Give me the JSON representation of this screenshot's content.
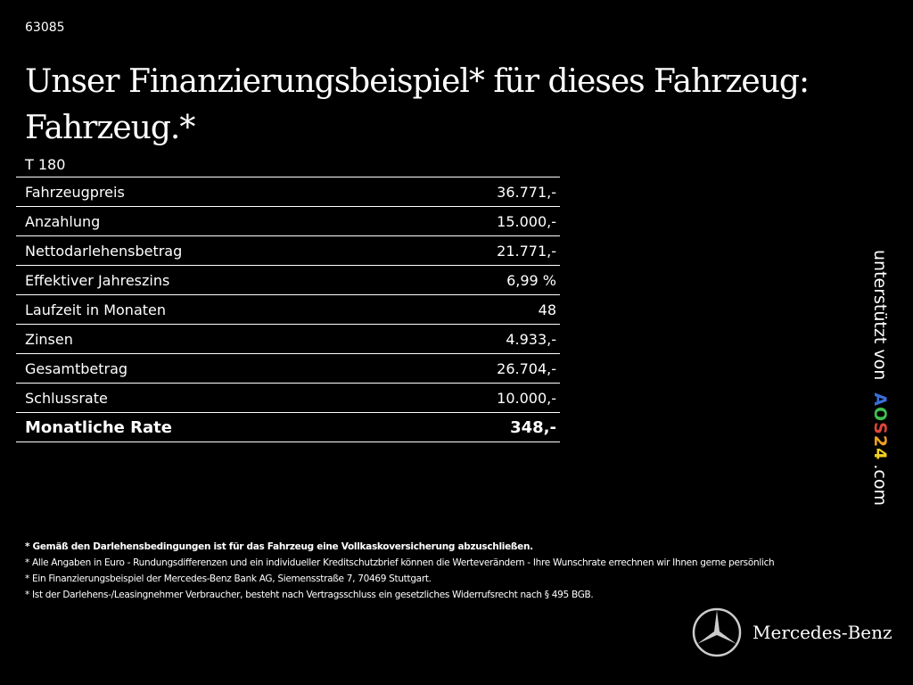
{
  "code": "63085",
  "title": "Unser Finanzierungsbeispiel* für dieses Fahrzeug: Fahrzeug.*",
  "model": "T 180",
  "rows": [
    {
      "label": "Fahrzeugpreis",
      "value": "36.771,-"
    },
    {
      "label": "Anzahlung",
      "value": "15.000,-"
    },
    {
      "label": "Nettodarlehensbetrag",
      "value": "21.771,-"
    },
    {
      "label": "Effektiver Jahreszins",
      "value": "6,99 %"
    },
    {
      "label": "Laufzeit in Monaten",
      "value": "48"
    },
    {
      "label": "Zinsen",
      "value": "4.933,-"
    },
    {
      "label": "Gesamtbetrag",
      "value": "26.704,-"
    },
    {
      "label": "Schlussrate",
      "value": "10.000,-"
    },
    {
      "label": "Monatliche Rate",
      "value": "348,-"
    }
  ],
  "support": {
    "prefix": "unterstützt von",
    "logo_letters": [
      "A",
      "O",
      "S",
      "2",
      "4"
    ],
    "logo_colors": [
      "#3a6fd8",
      "#3fbf4f",
      "#e0443a",
      "#f0a020",
      "#f0d020"
    ],
    "suffix": ".com"
  },
  "notes": [
    "* Gemäß den Darlehensbedingungen ist für das Fahrzeug eine Vollkaskoversicherung abzuschließen.",
    "* Alle Angaben in Euro - Rundungsdifferenzen und ein individueller Kreditschutzbrief können die Werteverändern - Ihre Wunschrate errechnen wir Ihnen gerne persönlich",
    "* Ein Finanzierungsbeispiel der Mercedes-Benz Bank AG, Siemensstraße 7, 70469 Stuttgart.",
    "* Ist der Darlehens-/Leasingnehmer Verbraucher, besteht nach Vertragsschluss ein gesetzliches Widerrufsrecht nach § 495 BGB."
  ],
  "brand": "Mercedes-Benz"
}
